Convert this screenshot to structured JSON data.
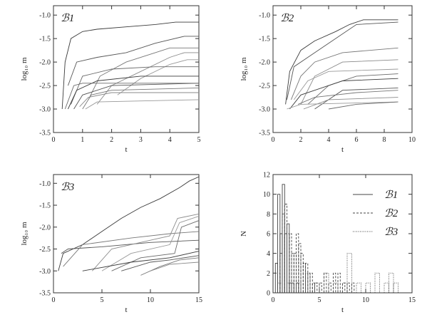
{
  "chart_data": [
    {
      "type": "line",
      "panel_label": "ℬ1",
      "xlabel": "t",
      "ylabel": "log₁₀ m",
      "xlim": [
        0,
        5
      ],
      "ylim": [
        -3.5,
        -0.8
      ],
      "xticks": [
        0,
        1,
        2,
        3,
        4,
        5
      ],
      "yticks": [
        -1.0,
        -1.5,
        -2.0,
        -2.5,
        -3.0,
        -3.5
      ],
      "yticklabels": [
        "-1.0",
        "-1.5",
        "-2.0",
        "-2.5",
        "-3.0",
        "-3.5"
      ],
      "series": [
        {
          "x": [
            0.3,
            0.4,
            0.6,
            1.0,
            1.5,
            2.5,
            3.5,
            4.2,
            5.0
          ],
          "y": [
            -3.0,
            -2.0,
            -1.5,
            -1.35,
            -1.3,
            -1.25,
            -1.2,
            -1.15,
            -1.15
          ]
        },
        {
          "x": [
            0.5,
            0.8,
            1.5,
            2.5,
            3.5,
            4.5,
            5.0
          ],
          "y": [
            -2.5,
            -2.0,
            -1.9,
            -1.8,
            -1.6,
            -1.45,
            -1.45
          ]
        },
        {
          "x": [
            1.2,
            1.6,
            2.5,
            3.5,
            4.0,
            5.0
          ],
          "y": [
            -2.8,
            -2.3,
            -2.0,
            -1.8,
            -1.7,
            -1.7
          ]
        },
        {
          "x": [
            1.5,
            2.0,
            3.0,
            4.0,
            4.5,
            5.0
          ],
          "y": [
            -2.9,
            -2.5,
            -2.2,
            -1.9,
            -1.8,
            -1.8
          ]
        },
        {
          "x": [
            2.2,
            3.0,
            4.0,
            4.6,
            5.0
          ],
          "y": [
            -2.7,
            -2.35,
            -2.05,
            -1.95,
            -1.95
          ]
        },
        {
          "x": [
            0.6,
            1.0,
            2.0,
            3.5,
            5.0
          ],
          "y": [
            -2.9,
            -2.3,
            -2.15,
            -2.1,
            -2.1
          ]
        },
        {
          "x": [
            0.5,
            0.8,
            1.5,
            3.0,
            5.0
          ],
          "y": [
            -3.0,
            -2.6,
            -2.4,
            -2.3,
            -2.3
          ]
        },
        {
          "x": [
            0.7,
            1.0,
            2.0,
            5.0
          ],
          "y": [
            -3.0,
            -2.7,
            -2.5,
            -2.45
          ]
        },
        {
          "x": [
            1.0,
            1.3,
            2.0,
            5.0
          ],
          "y": [
            -3.0,
            -2.7,
            -2.6,
            -2.55
          ]
        },
        {
          "x": [
            0.9,
            1.2,
            2.0,
            5.0
          ],
          "y": [
            -2.95,
            -2.75,
            -2.65,
            -2.65
          ]
        },
        {
          "x": [
            1.1,
            1.5,
            5.0
          ],
          "y": [
            -3.0,
            -2.85,
            -2.8
          ]
        },
        {
          "x": [
            0.4,
            0.7,
            1.0,
            5.0
          ],
          "y": [
            -3.0,
            -2.5,
            -2.45,
            -2.45
          ]
        }
      ]
    },
    {
      "type": "line",
      "panel_label": "ℬ2",
      "xlabel": "t",
      "ylabel": "log₁₀ m",
      "xlim": [
        0,
        10
      ],
      "ylim": [
        -3.5,
        -0.8
      ],
      "xticks": [
        0,
        2,
        4,
        6,
        8,
        10
      ],
      "yticks": [
        -1.0,
        -1.5,
        -2.0,
        -2.5,
        -3.0,
        -3.5
      ],
      "yticklabels": [
        "-1.0",
        "-1.5",
        "-2.0",
        "-2.5",
        "-3.0",
        "-3.5"
      ],
      "series": [
        {
          "x": [
            0.9,
            1.2,
            2.0,
            3.0,
            4.5,
            5.5,
            6.5,
            9.0
          ],
          "y": [
            -2.9,
            -2.2,
            -1.75,
            -1.55,
            -1.35,
            -1.2,
            -1.1,
            -1.1
          ]
        },
        {
          "x": [
            1.0,
            1.5,
            2.5,
            4.0,
            6.0,
            9.0
          ],
          "y": [
            -2.8,
            -2.1,
            -1.9,
            -1.6,
            -1.2,
            -1.15
          ]
        },
        {
          "x": [
            1.3,
            2.0,
            3.0,
            5.0,
            9.0
          ],
          "y": [
            -2.8,
            -2.3,
            -2.0,
            -1.8,
            -1.7
          ]
        },
        {
          "x": [
            2.0,
            3.0,
            5.0,
            9.0
          ],
          "y": [
            -2.9,
            -2.3,
            -2.0,
            -1.95
          ]
        },
        {
          "x": [
            1.5,
            2.5,
            4.0,
            9.0
          ],
          "y": [
            -2.8,
            -2.4,
            -2.2,
            -2.15
          ]
        },
        {
          "x": [
            2.5,
            4.0,
            6.0,
            9.0
          ],
          "y": [
            -2.9,
            -2.5,
            -2.3,
            -2.25
          ]
        },
        {
          "x": [
            1.2,
            2.0,
            5.0,
            9.0
          ],
          "y": [
            -3.0,
            -2.7,
            -2.4,
            -2.35
          ]
        },
        {
          "x": [
            3.0,
            5.0,
            9.0
          ],
          "y": [
            -3.0,
            -2.6,
            -2.55
          ]
        },
        {
          "x": [
            1.8,
            3.0,
            6.0,
            9.0
          ],
          "y": [
            -2.9,
            -2.75,
            -2.65,
            -2.6
          ]
        },
        {
          "x": [
            2.2,
            4.0,
            9.0
          ],
          "y": [
            -3.0,
            -2.8,
            -2.75
          ]
        },
        {
          "x": [
            1.0,
            2.0,
            9.0
          ],
          "y": [
            -3.0,
            -2.9,
            -2.85
          ]
        },
        {
          "x": [
            4.0,
            6.0,
            9.0
          ],
          "y": [
            -3.0,
            -2.9,
            -2.85
          ]
        }
      ]
    },
    {
      "type": "line",
      "panel_label": "ℬ3",
      "xlabel": "t",
      "ylabel": "log₁₀ m",
      "xlim": [
        0,
        15
      ],
      "ylim": [
        -3.5,
        -0.8
      ],
      "xticks": [
        0,
        5,
        10,
        15
      ],
      "yticks": [
        -1.0,
        -1.5,
        -2.0,
        -2.5,
        -3.0,
        -3.5
      ],
      "yticklabels": [
        "-1.0",
        "-1.5",
        "-2.0",
        "-2.5",
        "-3.0",
        "-3.5"
      ],
      "series": [
        {
          "x": [
            0.5,
            1.0,
            3.0,
            5.0,
            7.0,
            9.0,
            11.0,
            13.0,
            14.0,
            15.0
          ],
          "y": [
            -3.0,
            -2.6,
            -2.4,
            -2.1,
            -1.8,
            -1.55,
            -1.35,
            -1.1,
            -0.95,
            -0.85
          ]
        },
        {
          "x": [
            0.8,
            1.5,
            5.0,
            10.0,
            15.0
          ],
          "y": [
            -2.6,
            -2.5,
            -2.45,
            -2.35,
            -2.3
          ]
        },
        {
          "x": [
            1.0,
            3.0,
            8.0,
            12.0,
            15.0
          ],
          "y": [
            -2.9,
            -2.4,
            -2.25,
            -2.15,
            -2.1
          ]
        },
        {
          "x": [
            4.0,
            6.0,
            10.0,
            12.0,
            12.8,
            15.0
          ],
          "y": [
            -3.0,
            -2.5,
            -2.3,
            -2.2,
            -1.8,
            -1.7
          ]
        },
        {
          "x": [
            5.0,
            8.0,
            12.0,
            13.0,
            15.0
          ],
          "y": [
            -3.0,
            -2.6,
            -2.4,
            -1.9,
            -1.75
          ]
        },
        {
          "x": [
            6.0,
            9.0,
            12.5,
            13.2,
            15.0
          ],
          "y": [
            -3.0,
            -2.7,
            -2.6,
            -2.0,
            -1.85
          ]
        },
        {
          "x": [
            3.0,
            8.0,
            12.0,
            15.0
          ],
          "y": [
            -3.0,
            -2.8,
            -2.7,
            -2.55
          ]
        },
        {
          "x": [
            7.0,
            10.0,
            12.0,
            15.0
          ],
          "y": [
            -3.0,
            -2.8,
            -2.75,
            -2.65
          ]
        },
        {
          "x": [
            9.0,
            11.0,
            13.0,
            15.0
          ],
          "y": [
            -3.1,
            -2.9,
            -2.75,
            -2.7
          ]
        },
        {
          "x": [
            10.0,
            12.0,
            15.0
          ],
          "y": [
            -3.0,
            -2.85,
            -2.8
          ]
        }
      ]
    },
    {
      "type": "bar",
      "histogram": true,
      "xlabel": "t",
      "ylabel": "N",
      "xlim": [
        0,
        15
      ],
      "ylim": [
        0,
        12
      ],
      "xticks": [
        0,
        5,
        10,
        15
      ],
      "yticks": [
        0,
        2,
        4,
        6,
        8,
        10,
        12
      ],
      "legend_position": "top-right",
      "series": [
        {
          "name": "ℬ1",
          "style": "solid",
          "bin_width": 0.25,
          "x": [
            0.25,
            0.5,
            0.75,
            1.0,
            1.25,
            1.5,
            1.75,
            2.0,
            2.25,
            2.5
          ],
          "values": [
            3,
            10,
            6,
            11,
            6,
            7,
            1,
            1,
            0,
            1
          ]
        },
        {
          "name": "ℬ2",
          "style": "dashed",
          "bin_width": 0.25,
          "x": [
            0.5,
            0.75,
            1.0,
            1.25,
            1.5,
            1.75,
            2.0,
            2.25,
            2.5,
            2.75,
            3.0,
            3.25,
            3.5,
            3.75,
            4.0,
            4.25,
            4.5,
            5.0,
            5.5,
            6.0,
            6.5,
            7.0,
            7.5,
            8.0,
            8.5
          ],
          "values": [
            2,
            4,
            8,
            9,
            6,
            6,
            4,
            4,
            6,
            5,
            4,
            3,
            3,
            2,
            2,
            1,
            1,
            1,
            2,
            1,
            2,
            2,
            1,
            1,
            1
          ]
        },
        {
          "name": "ℬ3",
          "style": "dotted",
          "bin_width": 0.5,
          "x": [
            0.5,
            1.5,
            2.5,
            3.5,
            4.5,
            5.5,
            6.5,
            7.5,
            8.0,
            9.0,
            10.0,
            11.0,
            12.0,
            12.5,
            13.0
          ],
          "values": [
            1,
            1,
            1,
            2,
            1,
            2,
            1,
            1,
            4,
            1,
            1,
            2,
            1,
            2,
            1
          ]
        }
      ]
    }
  ]
}
